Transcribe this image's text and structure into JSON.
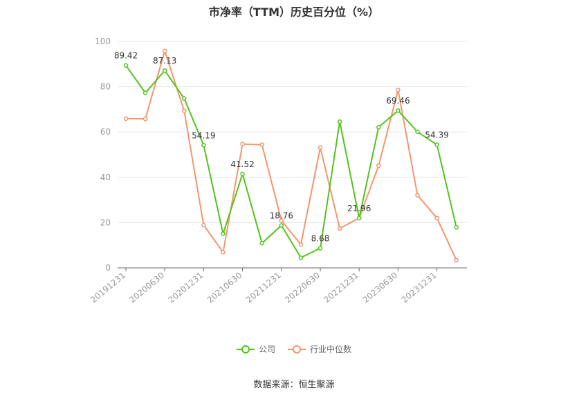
{
  "chart_data": {
    "type": "line",
    "title": "市净率（TTM）历史百分位（%）",
    "categories": [
      "20191231",
      "20200331",
      "20200630",
      "20200930",
      "20201231",
      "20210331",
      "20210630",
      "20210930",
      "20211231",
      "20220331",
      "20220630",
      "20220930",
      "20221231",
      "20230331",
      "20230630",
      "20230930",
      "20231231",
      "20240331"
    ],
    "tick_labels": [
      "20191231",
      "20200630",
      "20201231",
      "20210630",
      "20211231",
      "20220630",
      "20221231",
      "20230630",
      "20231231"
    ],
    "ylim": [
      0,
      100
    ],
    "yticks": [
      0,
      20,
      40,
      60,
      80,
      100
    ],
    "grid": true,
    "legend_position": "bottom",
    "series": [
      {
        "name": "公司",
        "color": "#52c41a",
        "values": [
          89.42,
          77.3,
          87.13,
          74.8,
          54.19,
          15.1,
          41.52,
          10.9,
          18.76,
          4.5,
          8.68,
          64.6,
          21.96,
          62.1,
          69.46,
          60.1,
          54.39,
          17.9
        ],
        "labels": [
          {
            "index": 0,
            "text": "89.42"
          },
          {
            "index": 2,
            "text": "87.13"
          },
          {
            "index": 4,
            "text": "54.19"
          },
          {
            "index": 6,
            "text": "41.52"
          },
          {
            "index": 8,
            "text": "18.76"
          },
          {
            "index": 10,
            "text": "8.68"
          },
          {
            "index": 12,
            "text": "21.96"
          },
          {
            "index": 14,
            "text": "69.46"
          },
          {
            "index": 16,
            "text": "54.39"
          }
        ]
      },
      {
        "name": "行业中位数",
        "color": "#f5956b",
        "values": [
          65.9,
          65.8,
          95.8,
          69.3,
          18.9,
          6.9,
          54.7,
          54.4,
          20.9,
          10.3,
          53.2,
          17.4,
          22.0,
          45.1,
          78.6,
          32.1,
          22.0,
          3.4
        ],
        "labels": []
      }
    ],
    "source": "数据来源：恒生聚源"
  }
}
